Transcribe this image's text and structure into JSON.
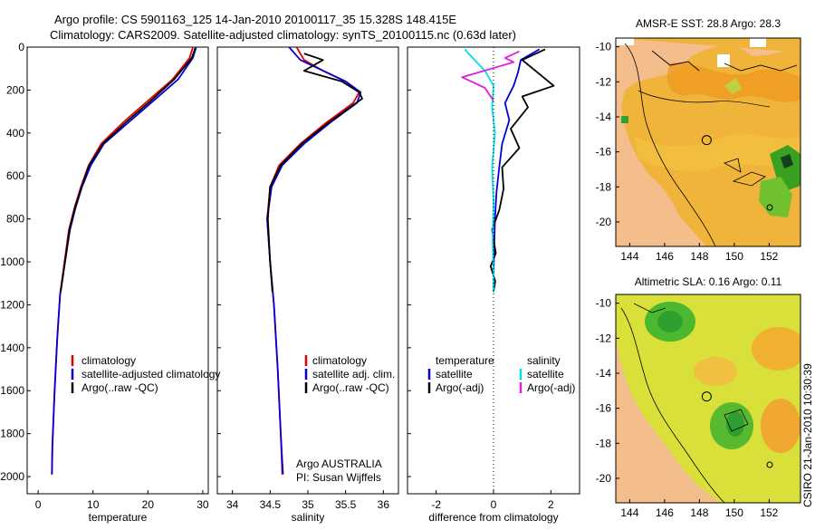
{
  "title": {
    "line1": "Argo profile: CS 5901163_125 14-Jan-2010 20100117_35 15.328S 148.415E",
    "line2": "Climatology: CARS2009. Satellite-adjusted climatology: synTS_20100115.nc (0.63d later)"
  },
  "colors": {
    "red": "#e00000",
    "blue": "#0000dd",
    "black": "#000000",
    "cyan": "#00e0e8",
    "magenta": "#e020e0"
  },
  "depth_axis": {
    "ylim": [
      0,
      2080
    ],
    "ticks": [
      0,
      200,
      400,
      600,
      800,
      1000,
      1200,
      1400,
      1600,
      1800,
      2000
    ]
  },
  "annotation": {
    "program": "Argo AUSTRALIA",
    "pi": "PI: Susan Wijffels"
  },
  "chart_data": [
    {
      "id": "temperature",
      "type": "line",
      "xlabel": "temperature",
      "xlim": [
        -2,
        31
      ],
      "xticks": [
        0,
        10,
        20,
        30
      ],
      "legend": [
        "climatology",
        "satellite-adjusted climatology",
        "Argo(..raw -QC)"
      ],
      "series": [
        {
          "name": "climatology",
          "color": "red",
          "x": [
            28.2,
            27.6,
            24.5,
            20.0,
            15.5,
            11.5,
            9.2,
            7.8,
            6.6,
            5.6,
            4.8,
            4.0,
            3.5,
            3.0,
            2.6,
            2.5
          ],
          "y": [
            0,
            50,
            150,
            250,
            350,
            450,
            550,
            650,
            750,
            850,
            1000,
            1150,
            1350,
            1600,
            1850,
            1990
          ]
        },
        {
          "name": "satellite-adjusted climatology",
          "color": "blue",
          "x": [
            28.8,
            28.2,
            25.5,
            21.0,
            16.5,
            12.0,
            9.6,
            8.0,
            6.8,
            5.8,
            4.9,
            4.0,
            3.5,
            3.0,
            2.6,
            2.5
          ],
          "y": [
            0,
            50,
            150,
            250,
            350,
            450,
            550,
            650,
            750,
            850,
            1000,
            1150,
            1350,
            1600,
            1850,
            1990
          ]
        },
        {
          "name": "Argo",
          "color": "black",
          "x": [
            28.6,
            28.0,
            24.8,
            20.5,
            16.0,
            11.8,
            9.3,
            7.9,
            6.7,
            5.7,
            4.9,
            4.1
          ],
          "y": [
            5,
            50,
            150,
            250,
            350,
            450,
            550,
            650,
            750,
            850,
            1000,
            1140
          ]
        }
      ]
    },
    {
      "id": "salinity",
      "type": "line",
      "xlabel": "salinity",
      "xlim": [
        33.8,
        36.2
      ],
      "xticks": [
        34,
        34.5,
        35,
        35.5,
        36
      ],
      "legend": [
        "climatology",
        "satellite adj. clim.",
        "Argo(..raw -QC)"
      ],
      "series": [
        {
          "name": "climatology",
          "color": "red",
          "x": [
            34.85,
            34.95,
            35.2,
            35.5,
            35.68,
            35.6,
            35.25,
            34.9,
            34.62,
            34.5,
            34.46,
            34.5,
            34.55,
            34.6,
            34.64,
            34.66
          ],
          "y": [
            0,
            60,
            110,
            160,
            210,
            260,
            350,
            450,
            550,
            650,
            800,
            1000,
            1200,
            1500,
            1800,
            1990
          ]
        },
        {
          "name": "satellite adj. clim.",
          "color": "blue",
          "x": [
            34.75,
            34.9,
            35.2,
            35.5,
            35.7,
            35.65,
            35.3,
            34.95,
            34.66,
            34.52,
            34.46,
            34.5,
            34.55,
            34.6,
            34.64,
            34.67
          ],
          "y": [
            0,
            60,
            110,
            160,
            210,
            260,
            350,
            450,
            550,
            650,
            800,
            1000,
            1200,
            1500,
            1800,
            1990
          ]
        },
        {
          "name": "Argo",
          "color": "black",
          "x": [
            34.95,
            35.2,
            34.95,
            35.45,
            35.68,
            35.72,
            35.28,
            34.92,
            34.64,
            34.5,
            34.47,
            34.5,
            34.53
          ],
          "y": [
            30,
            60,
            110,
            160,
            210,
            240,
            350,
            450,
            550,
            650,
            800,
            1000,
            1140
          ]
        }
      ]
    },
    {
      "id": "difference",
      "type": "line",
      "xlabel": "difference from climatology",
      "xlim": [
        -3,
        3
      ],
      "xticks": [
        -2,
        0,
        2
      ],
      "legend_headers": [
        "temperature",
        "salinity"
      ],
      "legend": [
        "satellite",
        "Argo(-adj)",
        "satellite",
        "Argo(-adj)"
      ],
      "series": [
        {
          "name": "temperature satellite",
          "color": "blue",
          "x": [
            1.6,
            0.95,
            0.85,
            0.7,
            0.4,
            0.55,
            0.3,
            0.2,
            0.1,
            0.05,
            0.02,
            0.0,
            0.0
          ],
          "y": [
            10,
            60,
            120,
            180,
            260,
            340,
            450,
            560,
            680,
            800,
            950,
            1080,
            1140
          ]
        },
        {
          "name": "temperature Argo(-adj)",
          "color": "black",
          "x": [
            1.8,
            1.0,
            2.1,
            1.0,
            1.2,
            0.6,
            0.9,
            0.3,
            0.35,
            0.2,
            -0.05,
            0.08,
            -0.1,
            0.06,
            0.0
          ],
          "y": [
            10,
            60,
            180,
            230,
            280,
            380,
            470,
            560,
            660,
            760,
            850,
            960,
            1020,
            1090,
            1140
          ]
        },
        {
          "name": "salinity satellite",
          "color": "cyan",
          "x": [
            -1.0,
            -0.8,
            -0.3,
            0.0,
            -0.05,
            0.05,
            -0.05,
            0.0,
            -0.03,
            0.0,
            0.0
          ],
          "y": [
            10,
            40,
            110,
            180,
            280,
            400,
            560,
            720,
            900,
            1050,
            1140
          ]
        },
        {
          "name": "salinity Argo(-adj)",
          "color": "magenta",
          "x": [
            0.9,
            0.4,
            0.7,
            -1.1,
            -0.3,
            0.0
          ],
          "y": [
            20,
            50,
            70,
            140,
            190,
            250
          ]
        }
      ]
    },
    {
      "id": "sst_map",
      "type": "heatmap",
      "title": "AMSR-E SST: 28.8 Argo: 28.3",
      "xlim": [
        143.2,
        153.8
      ],
      "ylim": [
        -21.4,
        -9.5
      ],
      "xticks": [
        144,
        146,
        148,
        150,
        152
      ],
      "yticks": [
        -10,
        -12,
        -14,
        -16,
        -18,
        -20
      ],
      "argo_position": {
        "lon": 148.415,
        "lat": -15.328
      }
    },
    {
      "id": "sla_map",
      "type": "heatmap",
      "title": "Altimetric SLA: 0.16 Argo: 0.11",
      "xlim": [
        143.2,
        153.8
      ],
      "ylim": [
        -21.4,
        -9.5
      ],
      "xticks": [
        144,
        146,
        148,
        150,
        152
      ],
      "yticks": [
        -10,
        -12,
        -14,
        -16,
        -18,
        -20
      ],
      "argo_position": {
        "lon": 148.415,
        "lat": -15.328
      }
    }
  ],
  "footer": {
    "stamp": "CSIRO 21-Jan-2010 10:30:39"
  }
}
